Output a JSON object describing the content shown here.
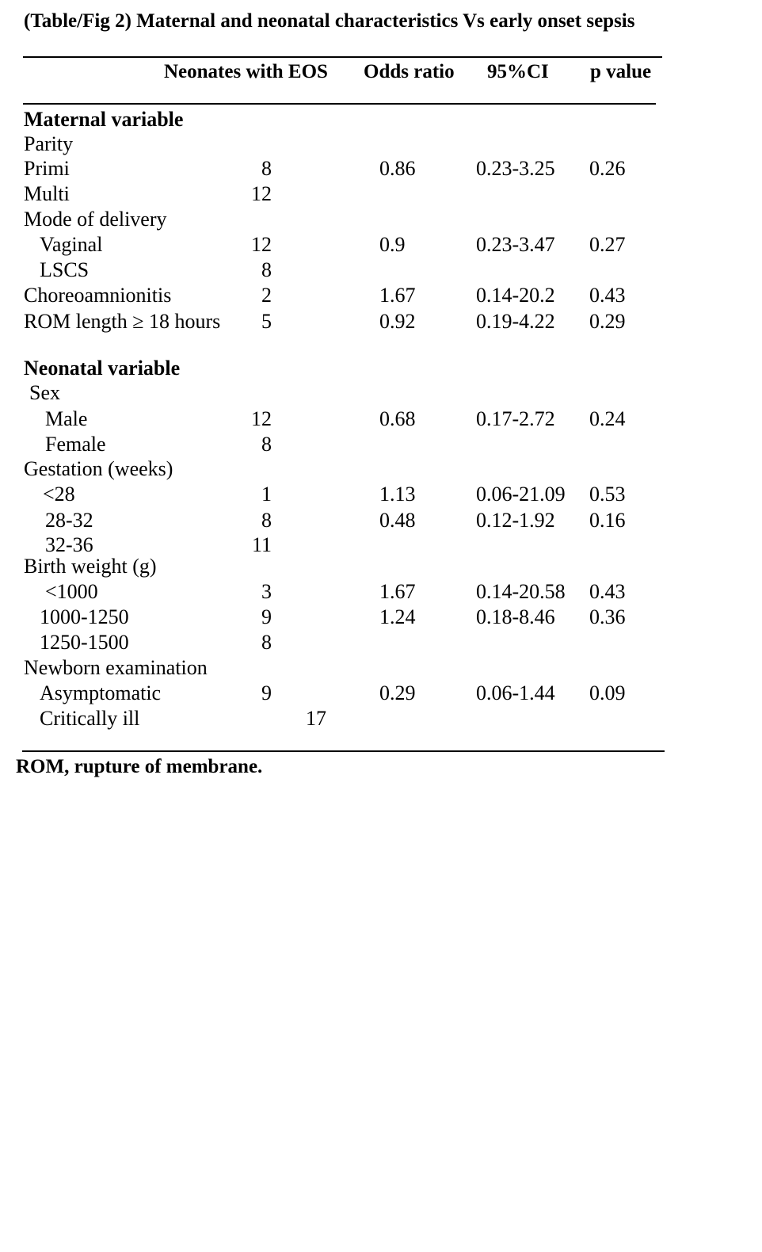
{
  "title": "(Table/Fig 2) Maternal and neonatal characteristics Vs early onset sepsis",
  "columns": [
    "",
    "Neonates with EOS",
    "Odds ratio",
    "95%CI",
    "p value"
  ],
  "rows": [
    {
      "label": "Maternal variable",
      "type": "section",
      "n": "",
      "or": "",
      "ci": "",
      "p": ""
    },
    {
      "label": "Parity",
      "type": "group",
      "n": "",
      "or": "",
      "ci": "",
      "p": ""
    },
    {
      "label": "Primi",
      "type": "item",
      "n": "8",
      "or": "0.86",
      "ci": "0.23-3.25",
      "p": "0.26"
    },
    {
      "label": "Multi",
      "type": "item",
      "n": "12",
      "or": "",
      "ci": "",
      "p": ""
    },
    {
      "label": "Mode of delivery",
      "type": "group",
      "n": "",
      "or": "",
      "ci": "",
      "p": ""
    },
    {
      "label": "Vaginal",
      "type": "sub",
      "n": "12",
      "or": "0.9",
      "ci": "0.23-3.47",
      "p": "0.27"
    },
    {
      "label": "LSCS",
      "type": "sub",
      "n": "8",
      "or": "",
      "ci": "",
      "p": ""
    },
    {
      "label": "Choreoamnionitis",
      "type": "item",
      "n": "2",
      "or": "1.67",
      "ci": "0.14-20.2",
      "p": "0.43"
    },
    {
      "label": "ROM length ≥ 18 hours",
      "type": "item",
      "n": "5",
      "or": "0.92",
      "ci": "0.19-4.22",
      "p": "0.29"
    },
    {
      "label": "Neonatal variable",
      "type": "section",
      "n": "",
      "or": "",
      "ci": "",
      "p": ""
    },
    {
      "label": "Sex",
      "type": "group",
      "n": "",
      "or": "",
      "ci": "",
      "p": ""
    },
    {
      "label": "Male",
      "type": "sub",
      "n": "12",
      "or": "0.68",
      "ci": "0.17-2.72",
      "p": "0.24"
    },
    {
      "label": "Female",
      "type": "sub",
      "n": "8",
      "or": "",
      "ci": "",
      "p": ""
    },
    {
      "label": "Gestation (weeks)",
      "type": "group",
      "n": "",
      "or": "",
      "ci": "",
      "p": ""
    },
    {
      "label": "<28",
      "type": "sub",
      "n": "1",
      "or": "1.13",
      "ci": "0.06-21.09",
      "p": "0.53"
    },
    {
      "label": "28-32",
      "type": "sub",
      "n": "8",
      "or": "0.48",
      "ci": "0.12-1.92",
      "p": "0.16"
    },
    {
      "label": "32-36",
      "type": "sub",
      "n": "11",
      "or": "",
      "ci": "",
      "p": ""
    },
    {
      "label": "Birth weight (g)",
      "type": "group",
      "n": "",
      "or": "",
      "ci": "",
      "p": ""
    },
    {
      "label": "<1000",
      "type": "sub",
      "n": "3",
      "or": "1.67",
      "ci": "0.14-20.58",
      "p": "0.43"
    },
    {
      "label": "1000-1250",
      "type": "sub",
      "n": "9",
      "or": "1.24",
      "ci": "0.18-8.46",
      "p": "0.36"
    },
    {
      "label": "1250-1500",
      "type": "sub",
      "n": "8",
      "or": "",
      "ci": "",
      "p": ""
    },
    {
      "label": "Newborn examination",
      "type": "group",
      "n": "",
      "or": "",
      "ci": "",
      "p": ""
    },
    {
      "label": "Asymptomatic",
      "type": "sub",
      "n": "9",
      "or": "0.29",
      "ci": "0.06-1.44",
      "p": "0.09"
    },
    {
      "label": "Critically ill",
      "type": "sub",
      "n": "17",
      "or": "",
      "ci": "",
      "p": ""
    }
  ],
  "footnote": "ROM, rupture of membrane."
}
